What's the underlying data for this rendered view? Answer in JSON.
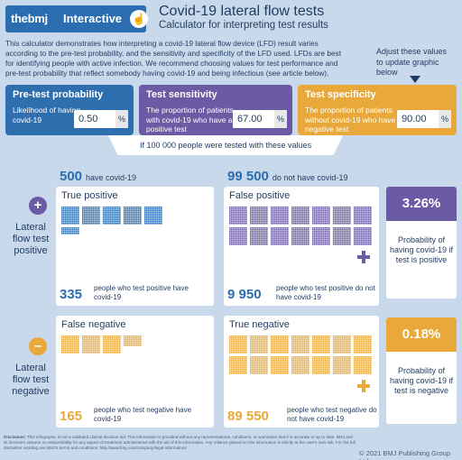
{
  "brand": {
    "logo_pre": "the",
    "logo_bold": "bmj",
    "mode": "Interactive",
    "touch_icon": "touch-icon"
  },
  "header": {
    "title": "Covid-19 lateral flow tests",
    "subtitle": "Calculator for interpreting test results"
  },
  "intro": "This calculator demonstrates how interpreting a covid-19 lateral flow device (LFD) result varies according to the pre-test probability, and the sensitivity and specificity of the LFD used. LFDs are best for identifying people with active infection. We recommend choosing values for test performance and pre-test probability that reflect somebody having covid-19 and being infectious (see article below).",
  "adjust_hint": "Adjust these values to update graphic below",
  "inputs": {
    "pretest": {
      "title": "Pre-test probability",
      "desc": "Likelihood of having covid-19",
      "value": "0.50",
      "unit": "%"
    },
    "sensitivity": {
      "title": "Test sensitivity",
      "desc": "The proportion of patients with covid-19 who have a positive test",
      "value": "67.00",
      "unit": "%"
    },
    "specificity": {
      "title": "Test specificity",
      "desc": "The proportion of patients without covid-19 who have a negative test",
      "value": "90.00",
      "unit": "%"
    }
  },
  "population_label": "If 100 000 people were tested with these values",
  "have": {
    "count": "500",
    "label": "have covid-19"
  },
  "not_have": {
    "count": "99 500",
    "label": "do not have covid-19"
  },
  "panels": {
    "tp": {
      "label": "True positive",
      "count": "335",
      "caption": "people who test positive have covid-19"
    },
    "fp": {
      "label": "False positive",
      "count": "9 950",
      "caption": "people who test positive do not have covid-19"
    },
    "fn": {
      "label": "False negative",
      "count": "165",
      "caption": "people who test negative have covid-19"
    },
    "tn": {
      "label": "True negative",
      "count": "89 550",
      "caption": "people who test negative do not have covid-19"
    }
  },
  "rows": {
    "positive": {
      "sign": "+",
      "label": "Lateral flow test positive"
    },
    "negative": {
      "sign": "–",
      "label": "Lateral flow test negative"
    }
  },
  "results": {
    "positive": {
      "value": "3.26%",
      "text": "Probability of having covid-19 if test is positive"
    },
    "negative": {
      "value": "0.18%",
      "text": "Probability of having covid-19 if test is negative"
    }
  },
  "disclaimer": {
    "bold": "Disclaimer:",
    "text": "This infographic is not a validated clinical decision aid. This information is provided without any representations, conditions, or warranties that it is accurate or up to date. BMJ and its licensors assume no responsibility for any aspect of treatment administered with the aid of this information. Any reliance placed on this information is strictly at the user's own risk. For the full disclaimer wording see BMJ's terms and conditions: http://www.bmj.com/company/legal-information/"
  },
  "copyright": "© 2021 BMJ Publishing Group Ltd.",
  "colors": {
    "blue": "#2a6db0",
    "purple": "#6b5aa4",
    "orange": "#e8a93a",
    "background": "#c9d9ec"
  }
}
